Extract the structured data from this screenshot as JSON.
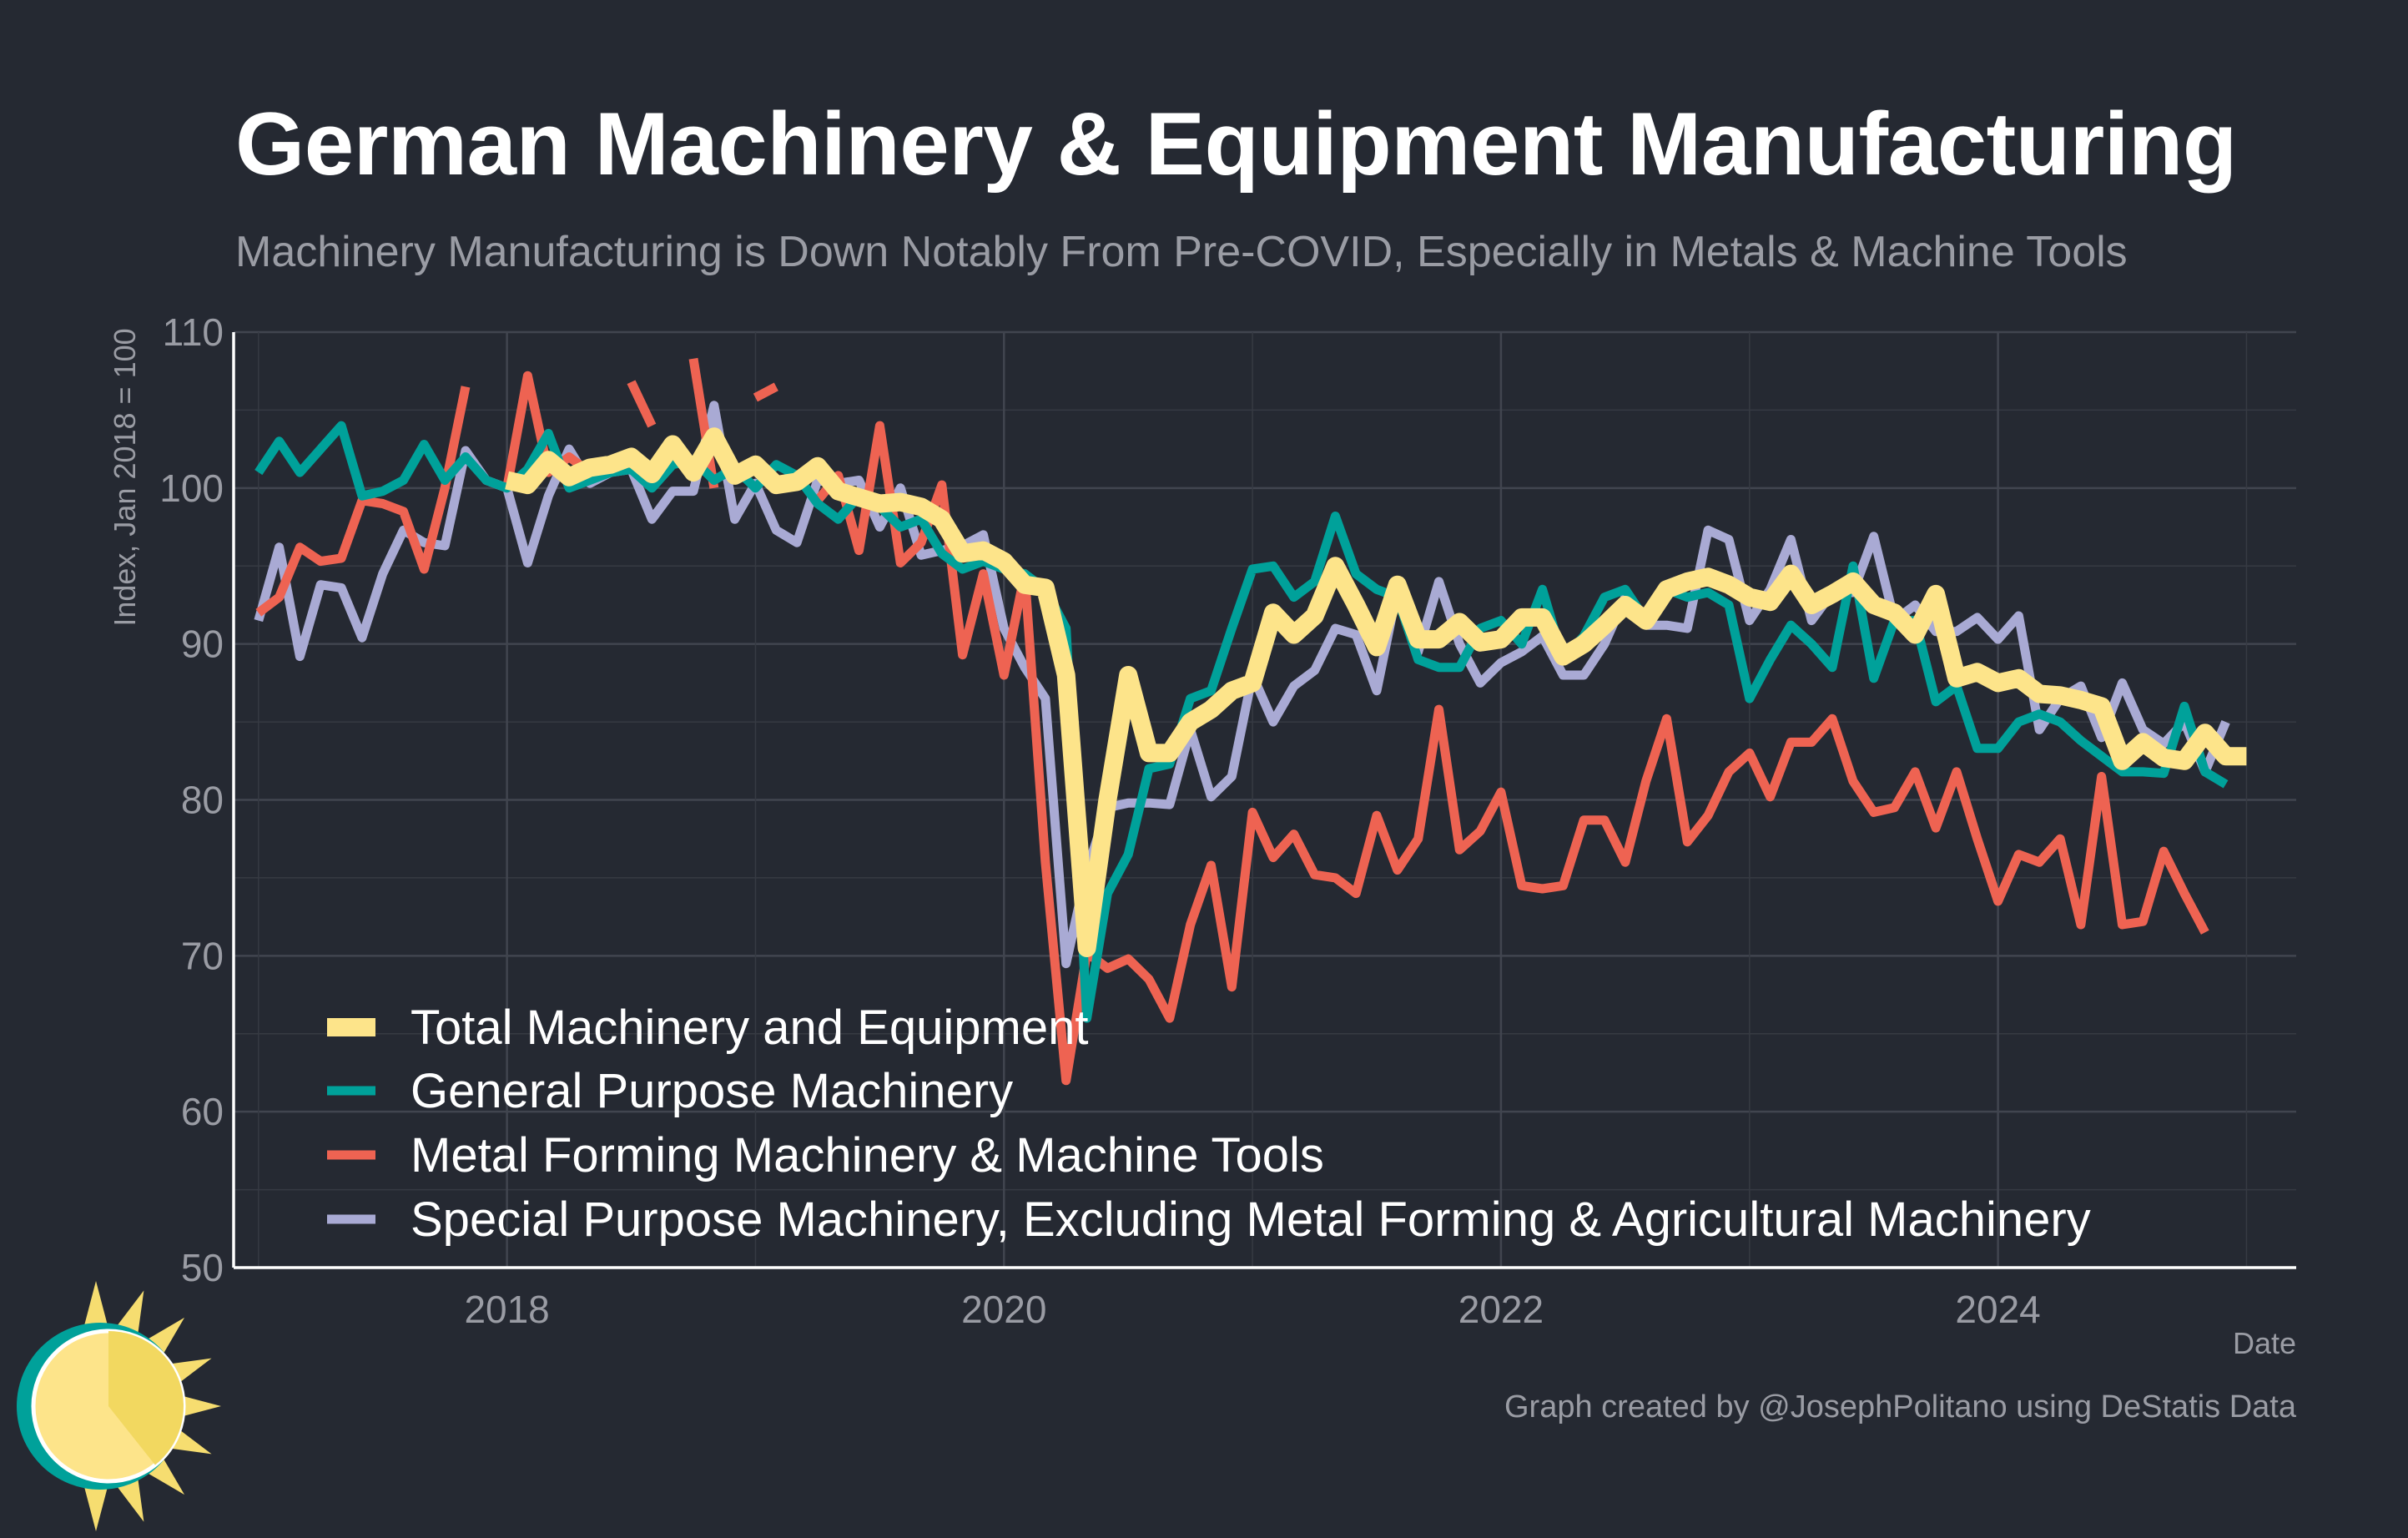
{
  "title": "German Machinery & Equipment Manufacturing",
  "subtitle": "Machinery Manufacturing is Down Notably From Pre-COVID, Especially in Metals & Machine Tools",
  "credit": "Graph created by @JosephPolitano using DeStatis Data",
  "logo": "sun-logo-icon",
  "chart_data": {
    "type": "line",
    "title": "German Machinery & Equipment Manufacturing",
    "xlabel": "Date",
    "ylabel": "Index, Jan 2018 = 100",
    "ylim": [
      50,
      110
    ],
    "yticks": [
      50,
      60,
      70,
      80,
      90,
      100,
      110
    ],
    "xlim": [
      2016.9,
      2025.2
    ],
    "xticks": [
      2018,
      2020,
      2022,
      2024
    ],
    "xtick_labels": [
      "2018",
      "2020",
      "2022",
      "2024"
    ],
    "grid": true,
    "legend": "bottom-left",
    "x_start": "2017-01",
    "x_step": "monthly",
    "series": [
      {
        "name": "Total Machinery and Equipment",
        "color": "#fde48a",
        "start_index": 12,
        "values": [
          100.5,
          100.2,
          101.8,
          100.7,
          101.3,
          101.5,
          102.0,
          100.9,
          102.8,
          101.0,
          103.3,
          100.8,
          101.5,
          100.2,
          100.4,
          101.4,
          99.8,
          99.4,
          99.0,
          99.1,
          98.8,
          98.0,
          95.8,
          96.0,
          95.3,
          93.8,
          93.6,
          88.0,
          70.5,
          80.0,
          88.0,
          83.0,
          83.0,
          85.0,
          85.8,
          87.0,
          87.5,
          92.0,
          90.6,
          91.8,
          95.0,
          92.5,
          89.8,
          93.8,
          90.3,
          90.3,
          91.4,
          90.1,
          90.3,
          91.7,
          91.7,
          89.2,
          90.0,
          91.2,
          92.5,
          91.5,
          93.5,
          94.0,
          94.3,
          93.8,
          93.0,
          92.7,
          94.5,
          92.5,
          93.2,
          94.0,
          92.5,
          92.0,
          90.6,
          93.2,
          87.8,
          88.2,
          87.5,
          87.8,
          86.8,
          86.7,
          86.4,
          86.0,
          82.5,
          83.7,
          82.7,
          82.5,
          84.3,
          82.8,
          82.8
        ]
      },
      {
        "name": "General Purpose Machinery",
        "color": "#00a19a",
        "start_index": 0,
        "values": [
          101.0,
          103.0,
          101.0,
          102.5,
          104.0,
          99.5,
          99.8,
          100.5,
          102.8,
          100.5,
          102.0,
          100.5,
          100.0,
          101.2,
          103.5,
          100.0,
          100.5,
          101.0,
          101.2,
          100.0,
          101.5,
          101.8,
          100.5,
          101.3,
          100.0,
          101.5,
          100.8,
          99.0,
          98.0,
          99.5,
          98.8,
          97.5,
          98.0,
          95.8,
          94.8,
          95.3,
          94.8,
          94.5,
          93.5,
          91.0,
          66.0,
          74.0,
          76.5,
          82.0,
          82.3,
          86.5,
          87.0,
          91.0,
          94.8,
          95.0,
          93.0,
          94.0,
          98.2,
          94.5,
          93.5,
          93.0,
          89.0,
          88.5,
          88.5,
          91.0,
          91.5,
          90.0,
          93.5,
          89.0,
          90.5,
          93.0,
          93.5,
          91.5,
          93.5,
          93.0,
          93.3,
          92.5,
          86.5,
          89.0,
          91.2,
          90.0,
          88.5,
          95.0,
          87.8,
          91.5,
          91.5,
          86.3,
          87.3,
          83.3,
          83.3,
          85.0,
          85.5,
          85.0,
          83.8,
          82.8,
          81.8,
          81.8,
          81.7,
          86.0,
          81.8,
          81.0
        ]
      },
      {
        "name": "Metal Forming Machinery & Machine Tools",
        "color": "#ee6352",
        "start_index": 0,
        "values": [
          92.0,
          93.0,
          96.2,
          95.3,
          95.5,
          99.2,
          99.0,
          98.5,
          94.8,
          100.0,
          106.5,
          null,
          100.0,
          107.2,
          101.0,
          102.0,
          101.0,
          null,
          106.8,
          104.0,
          null,
          108.3,
          100.0,
          null,
          105.8,
          106.5,
          null,
          99.2,
          100.8,
          96.0,
          104.0,
          95.2,
          96.5,
          100.2,
          89.3,
          94.5,
          88.0,
          94.5,
          76.0,
          62.0,
          70.2,
          69.2,
          69.8,
          68.5,
          66.0,
          72.0,
          75.8,
          68.0,
          79.2,
          76.3,
          77.8,
          75.2,
          75.0,
          74.0,
          79.0,
          75.5,
          77.5,
          85.8,
          76.8,
          78.0,
          80.5,
          74.5,
          74.3,
          74.5,
          78.7,
          78.7,
          76.0,
          81.2,
          85.2,
          77.3,
          79.0,
          81.8,
          83.0,
          80.2,
          83.7,
          83.7,
          85.2,
          81.2,
          79.2,
          79.5,
          81.8,
          78.2,
          81.8,
          77.5,
          73.5,
          76.5,
          76.0,
          77.5,
          72.0,
          81.5,
          72.0,
          72.2,
          76.7,
          74.0,
          71.5
        ]
      },
      {
        "name": "Special Purpose Machinery, Excluding Metal Forming & Agricultural Machinery",
        "color": "#a9aad4",
        "start_index": 0,
        "values": [
          91.5,
          96.2,
          89.2,
          93.8,
          93.6,
          90.4,
          94.5,
          97.3,
          96.5,
          96.3,
          102.4,
          100.5,
          100.0,
          95.2,
          99.5,
          102.5,
          100.3,
          101.0,
          101.2,
          98.0,
          99.8,
          99.8,
          105.3,
          98.0,
          100.3,
          97.3,
          96.5,
          100.5,
          100.3,
          100.5,
          97.5,
          100.0,
          95.7,
          96.0,
          96.3,
          97.0,
          91.0,
          88.5,
          86.5,
          69.5,
          75.5,
          79.5,
          79.8,
          79.8,
          79.7,
          84.5,
          80.2,
          81.5,
          88.0,
          85.0,
          87.3,
          88.3,
          91.0,
          90.6,
          87.0,
          93.5,
          89.5,
          94.0,
          90.0,
          87.5,
          88.8,
          89.5,
          90.5,
          88.0,
          88.0,
          90.0,
          93.0,
          91.2,
          91.2,
          91.0,
          97.3,
          96.7,
          91.5,
          93.5,
          96.7,
          91.5,
          93.3,
          93.3,
          96.9,
          91.5,
          92.5,
          90.8,
          90.8,
          91.7,
          90.3,
          91.8,
          84.5,
          86.5,
          87.3,
          84.0,
          87.5,
          84.5,
          83.6,
          85.0,
          81.8,
          85.0
        ]
      }
    ]
  }
}
